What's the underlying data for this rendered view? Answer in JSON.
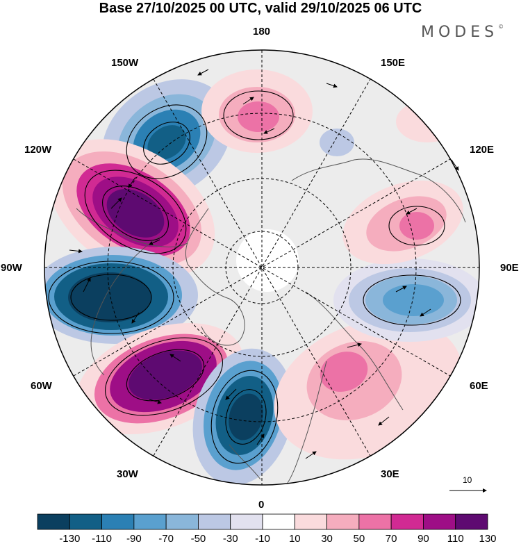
{
  "title": "Base 27/10/2025 00 UTC, valid 29/10/2025 06 UTC",
  "brand": {
    "name": "MODES",
    "mark": "©"
  },
  "longitude_labels": {
    "lon_180": "180",
    "lon_150e": "150E",
    "lon_120e": "120E",
    "lon_90e": "90E",
    "lon_60e": "60E",
    "lon_30e": "30E",
    "lon_0": "0",
    "lon_30w": "30W",
    "lon_60w": "60W",
    "lon_90w": "90W",
    "lon_120w": "120W",
    "lon_150w": "150W"
  },
  "vector_reference": {
    "label": "10"
  },
  "colorbar": {
    "tick_labels": [
      "-130",
      "-110",
      "-90",
      "-70",
      "-50",
      "-30",
      "-10",
      "10",
      "30",
      "50",
      "70",
      "90",
      "110",
      "130"
    ],
    "colors": [
      "#0b3f5f",
      "#125f86",
      "#2b80b4",
      "#5aa0cf",
      "#8ab6da",
      "#bcc8e4",
      "#e2e1ef",
      "#ffffff",
      "#fadbdd",
      "#f5adbe",
      "#ec72a6",
      "#d12a93",
      "#9e0e86",
      "#5e0a71"
    ]
  },
  "map": {
    "projection": "north-polar-stereographic",
    "anomaly_centers": [
      {
        "name": "north-pacific-low",
        "sign": "negative",
        "level": -90
      },
      {
        "name": "north-america-high",
        "sign": "positive",
        "level": 130
      },
      {
        "name": "hudson-bay-low",
        "sign": "negative",
        "level": -130
      },
      {
        "name": "west-atlantic-high",
        "sign": "positive",
        "level": 130
      },
      {
        "name": "east-atlantic-low",
        "sign": "negative",
        "level": -130
      },
      {
        "name": "europe-high",
        "sign": "positive",
        "level": 90
      },
      {
        "name": "siberia-low",
        "sign": "negative",
        "level": -70
      },
      {
        "name": "east-siberia-high",
        "sign": "positive",
        "level": 70
      },
      {
        "name": "chukchi-high",
        "sign": "positive",
        "level": 70
      }
    ]
  }
}
